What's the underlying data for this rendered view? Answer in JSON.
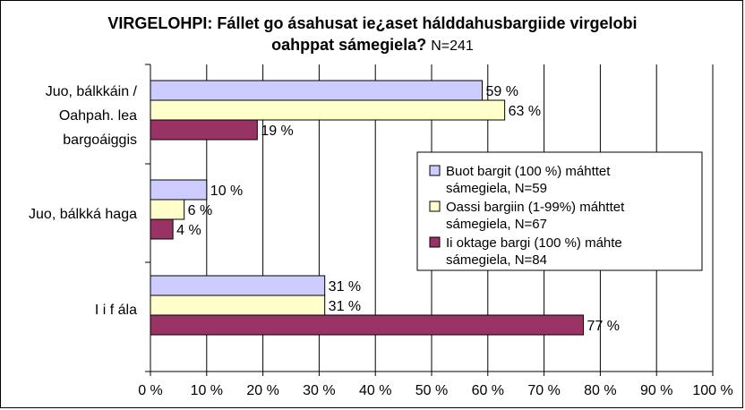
{
  "title": {
    "line1": "VIRGELOHPI: Fállet go ásahusat ie¿aset hálddahusbargiide virgelobi",
    "line2_bold": "oahppat sámegiela?",
    "line2_note": "N=241"
  },
  "chart_data": {
    "type": "bar",
    "orientation": "horizontal",
    "categories": [
      [
        "Juo, bálkkáin /",
        "Oahpah. lea",
        "bargoáiggis"
      ],
      [
        "Juo, bálkká haga"
      ],
      [
        "I i f ála"
      ]
    ],
    "series": [
      {
        "name": "Buot bargit (100 %) máhttet sámegiela, N=59",
        "legend_lines": [
          "Buot bargit (100 %) máhttet",
          "sámegiela, N=59"
        ],
        "color": "#ccccff",
        "values": [
          59,
          10,
          31
        ]
      },
      {
        "name": "Oassi bargiin (1-99%) máhttet sámegiela, N=67",
        "legend_lines": [
          "Oassi bargiin (1-99%) máhttet",
          "sámegiela, N=67"
        ],
        "color": "#ffffcc",
        "values": [
          63,
          6,
          31
        ]
      },
      {
        "name": "Ii oktage bargi (100 %) máhte sámegiela, N=84",
        "legend_lines": [
          "Ii oktage bargi (100 %) máhte",
          "sámegiela, N=84"
        ],
        "color": "#993366",
        "values": [
          19,
          4,
          77
        ]
      }
    ],
    "data_labels": [
      [
        "59 %",
        "10 %",
        "31 %"
      ],
      [
        "63 %",
        "6 %",
        "31 %"
      ],
      [
        "19 %",
        "4 %",
        "77 %"
      ]
    ],
    "xlim": [
      0,
      100
    ],
    "xticks": [
      "0 %",
      "10 %",
      "20 %",
      "30 %",
      "40 %",
      "50 %",
      "60 %",
      "70 %",
      "80 %",
      "90 %",
      "100 %"
    ],
    "grid": true,
    "legend_position": "right"
  }
}
